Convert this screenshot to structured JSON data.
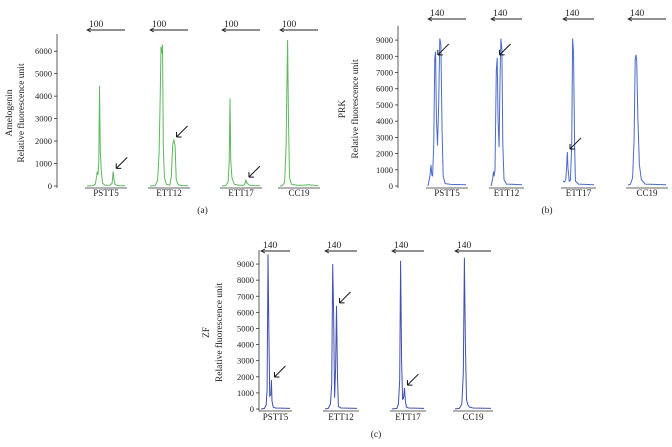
{
  "chart_data": [
    {
      "type": "line",
      "panel_label": "(a)",
      "ylabel_lines": [
        "Amelogenin",
        "Relative fluorescence unit"
      ],
      "ylim": [
        0,
        6500
      ],
      "y_ticks": [
        0,
        1000,
        2000,
        3000,
        4000,
        5000,
        6000
      ],
      "y_tick_labels": [
        "0",
        "1000",
        "2000",
        "3000",
        "4000",
        "5000",
        "6000"
      ],
      "color": "#5cb85c",
      "lanes": [
        {
          "sample": "PSTT5",
          "marker_label": "100",
          "trace": [
            [
              0,
              0
            ],
            [
              0.16,
              20
            ],
            [
              0.22,
              80
            ],
            [
              0.27,
              650
            ],
            [
              0.29,
              500
            ],
            [
              0.31,
              1100
            ],
            [
              0.33,
              4450
            ],
            [
              0.35,
              1500
            ],
            [
              0.38,
              600
            ],
            [
              0.41,
              120
            ],
            [
              0.48,
              30
            ],
            [
              0.6,
              30
            ],
            [
              0.66,
              120
            ],
            [
              0.69,
              650
            ],
            [
              0.71,
              300
            ],
            [
              0.74,
              60
            ],
            [
              0.82,
              20
            ],
            [
              1,
              15
            ]
          ],
          "arrows": [
            [
              0.69,
              650
            ]
          ]
        },
        {
          "sample": "ETT12",
          "marker_label": "100",
          "trace": [
            [
              0,
              0
            ],
            [
              0.14,
              20
            ],
            [
              0.2,
              250
            ],
            [
              0.24,
              1500
            ],
            [
              0.27,
              4200
            ],
            [
              0.29,
              6200
            ],
            [
              0.31,
              5900
            ],
            [
              0.33,
              6300
            ],
            [
              0.35,
              1800
            ],
            [
              0.38,
              400
            ],
            [
              0.43,
              80
            ],
            [
              0.52,
              40
            ],
            [
              0.56,
              400
            ],
            [
              0.6,
              1900
            ],
            [
              0.63,
              2050
            ],
            [
              0.66,
              1800
            ],
            [
              0.69,
              300
            ],
            [
              0.74,
              60
            ],
            [
              0.85,
              20
            ],
            [
              1,
              15
            ]
          ],
          "arrows": [
            [
              0.62,
              2050
            ]
          ]
        },
        {
          "sample": "ETT17",
          "marker_label": "100",
          "trace": [
            [
              0,
              0
            ],
            [
              0.1,
              20
            ],
            [
              0.16,
              180
            ],
            [
              0.19,
              1100
            ],
            [
              0.21,
              3900
            ],
            [
              0.23,
              1200
            ],
            [
              0.26,
              380
            ],
            [
              0.32,
              80
            ],
            [
              0.45,
              30
            ],
            [
              0.56,
              30
            ],
            [
              0.6,
              100
            ],
            [
              0.63,
              260
            ],
            [
              0.66,
              120
            ],
            [
              0.72,
              40
            ],
            [
              0.85,
              20
            ],
            [
              1,
              15
            ]
          ],
          "arrows": [
            [
              0.63,
              260
            ]
          ]
        },
        {
          "sample": "CC19",
          "marker_label": "100",
          "trace": [
            [
              0,
              0
            ],
            [
              0.06,
              20
            ],
            [
              0.12,
              150
            ],
            [
              0.16,
              1800
            ],
            [
              0.18,
              4200
            ],
            [
              0.2,
              6500
            ],
            [
              0.22,
              3200
            ],
            [
              0.25,
              400
            ],
            [
              0.3,
              80
            ],
            [
              0.45,
              30
            ],
            [
              0.6,
              30
            ],
            [
              0.75,
              60
            ],
            [
              0.9,
              30
            ],
            [
              1,
              20
            ]
          ],
          "arrows": []
        }
      ]
    },
    {
      "type": "line",
      "panel_label": "(b)",
      "ylabel_lines": [
        "PRK",
        "Relative fluorescence unit"
      ],
      "ylim": [
        0,
        9500
      ],
      "y_ticks": [
        0,
        1000,
        2000,
        3000,
        4000,
        5000,
        6000,
        7000,
        8000,
        9000
      ],
      "y_tick_labels": [
        "0",
        "1000",
        "2000",
        "3000",
        "4000",
        "5000",
        "6000",
        "7000",
        "8000",
        "9000"
      ],
      "color": "#4a6bc8",
      "lanes": [
        {
          "sample": "PSTT5",
          "marker_label": "140",
          "trace": [
            [
              0,
              0
            ],
            [
              0.05,
              600
            ],
            [
              0.08,
              1300
            ],
            [
              0.1,
              700
            ],
            [
              0.12,
              600
            ],
            [
              0.15,
              2500
            ],
            [
              0.18,
              7900
            ],
            [
              0.2,
              8300
            ],
            [
              0.22,
              4200
            ],
            [
              0.25,
              2500
            ],
            [
              0.28,
              4800
            ],
            [
              0.31,
              9100
            ],
            [
              0.34,
              8700
            ],
            [
              0.37,
              3300
            ],
            [
              0.4,
              600
            ],
            [
              0.45,
              150
            ],
            [
              0.6,
              100
            ],
            [
              1,
              80
            ]
          ],
          "arrows": [
            [
              0.18,
              7900
            ]
          ]
        },
        {
          "sample": "ETT12",
          "marker_label": "140",
          "trace": [
            [
              0,
              0
            ],
            [
              0.05,
              400
            ],
            [
              0.08,
              900
            ],
            [
              0.1,
              600
            ],
            [
              0.13,
              1000
            ],
            [
              0.17,
              7100
            ],
            [
              0.2,
              7900
            ],
            [
              0.23,
              4000
            ],
            [
              0.26,
              2400
            ],
            [
              0.29,
              6500
            ],
            [
              0.32,
              9100
            ],
            [
              0.35,
              8400
            ],
            [
              0.38,
              2600
            ],
            [
              0.42,
              400
            ],
            [
              0.5,
              120
            ],
            [
              1,
              80
            ]
          ],
          "arrows": [
            [
              0.18,
              7900
            ]
          ]
        },
        {
          "sample": "ETT17",
          "marker_label": "140",
          "trace": [
            [
              0,
              300
            ],
            [
              0.05,
              250
            ],
            [
              0.09,
              400
            ],
            [
              0.12,
              1300
            ],
            [
              0.14,
              2100
            ],
            [
              0.16,
              1100
            ],
            [
              0.2,
              300
            ],
            [
              0.24,
              350
            ],
            [
              0.28,
              2500
            ],
            [
              0.31,
              9100
            ],
            [
              0.34,
              8300
            ],
            [
              0.37,
              3000
            ],
            [
              0.4,
              300
            ],
            [
              0.5,
              120
            ],
            [
              1,
              80
            ]
          ],
          "arrows": [
            [
              0.13,
              2100
            ]
          ]
        },
        {
          "sample": "CC19",
          "marker_label": "140",
          "trace": [
            [
              0,
              60
            ],
            [
              0.06,
              100
            ],
            [
              0.12,
              500
            ],
            [
              0.16,
              2900
            ],
            [
              0.19,
              7800
            ],
            [
              0.21,
              8100
            ],
            [
              0.23,
              7700
            ],
            [
              0.26,
              4100
            ],
            [
              0.3,
              1300
            ],
            [
              0.35,
              400
            ],
            [
              0.45,
              120
            ],
            [
              1,
              80
            ]
          ],
          "arrows": []
        }
      ]
    },
    {
      "type": "line",
      "panel_label": "(c)",
      "ylabel_lines": [
        "ZF",
        "Relative fluorescence unit"
      ],
      "ylim": [
        0,
        9500
      ],
      "y_ticks": [
        0,
        1000,
        2000,
        3000,
        4000,
        5000,
        6000,
        7000,
        8000,
        9000
      ],
      "y_tick_labels": [
        "0",
        "1000",
        "2000",
        "3000",
        "4000",
        "5000",
        "6000",
        "7000",
        "8000",
        "9000"
      ],
      "color": "#4050b0",
      "lanes": [
        {
          "sample": "PSTT5",
          "marker_label": "140",
          "trace": [
            [
              0,
              0
            ],
            [
              0.12,
              40
            ],
            [
              0.18,
              260
            ],
            [
              0.21,
              1200
            ],
            [
              0.24,
              9600
            ],
            [
              0.27,
              5200
            ],
            [
              0.3,
              800
            ],
            [
              0.34,
              900
            ],
            [
              0.36,
              1800
            ],
            [
              0.38,
              500
            ],
            [
              0.42,
              120
            ],
            [
              0.5,
              60
            ],
            [
              1,
              40
            ]
          ],
          "arrows": [
            [
              0.36,
              1800
            ]
          ]
        },
        {
          "sample": "ETT12",
          "marker_label": "140",
          "trace": [
            [
              0,
              0
            ],
            [
              0.1,
              40
            ],
            [
              0.17,
              300
            ],
            [
              0.21,
              1500
            ],
            [
              0.24,
              9000
            ],
            [
              0.27,
              6000
            ],
            [
              0.3,
              700
            ],
            [
              0.33,
              2500
            ],
            [
              0.36,
              6400
            ],
            [
              0.39,
              2000
            ],
            [
              0.42,
              150
            ],
            [
              0.5,
              60
            ],
            [
              1,
              40
            ]
          ],
          "arrows": [
            [
              0.36,
              6400
            ]
          ]
        },
        {
          "sample": "ETT17",
          "marker_label": "140",
          "trace": [
            [
              0,
              0
            ],
            [
              0.15,
              40
            ],
            [
              0.2,
              300
            ],
            [
              0.24,
              1800
            ],
            [
              0.27,
              9200
            ],
            [
              0.3,
              3000
            ],
            [
              0.33,
              600
            ],
            [
              0.36,
              650
            ],
            [
              0.39,
              1300
            ],
            [
              0.42,
              500
            ],
            [
              0.45,
              120
            ],
            [
              0.52,
              60
            ],
            [
              1,
              40
            ]
          ],
          "arrows": [
            [
              0.39,
              1300
            ]
          ]
        },
        {
          "sample": "CC19",
          "marker_label": "140",
          "trace": [
            [
              0,
              0
            ],
            [
              0.12,
              40
            ],
            [
              0.19,
              300
            ],
            [
              0.23,
              2200
            ],
            [
              0.26,
              9400
            ],
            [
              0.29,
              4000
            ],
            [
              0.32,
              600
            ],
            [
              0.35,
              300
            ],
            [
              0.4,
              120
            ],
            [
              0.5,
              60
            ],
            [
              1,
              40
            ]
          ],
          "arrows": []
        }
      ]
    }
  ]
}
